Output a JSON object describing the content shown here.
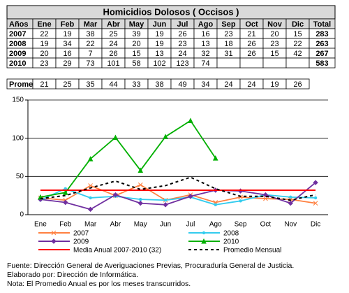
{
  "table": {
    "title": "Homicidios Dolosos ( Occisos )",
    "header": [
      "Años",
      "Ene",
      "Feb",
      "Mar",
      "Abr",
      "May",
      "Jun",
      "Jul",
      "Ago",
      "Sep",
      "Oct",
      "Nov",
      "Dic",
      "Total"
    ],
    "rows": [
      [
        "2007",
        22,
        19,
        38,
        25,
        39,
        19,
        26,
        16,
        23,
        21,
        20,
        15,
        283
      ],
      [
        "2008",
        19,
        34,
        22,
        24,
        20,
        19,
        23,
        13,
        18,
        26,
        23,
        22,
        263
      ],
      [
        "2009",
        20,
        16,
        7,
        26,
        15,
        13,
        24,
        32,
        31,
        26,
        15,
        42,
        267
      ],
      [
        "2010",
        23,
        29,
        73,
        101,
        58,
        102,
        123,
        74,
        null,
        null,
        null,
        null,
        583
      ]
    ],
    "average_row": [
      "Prome",
      21,
      25,
      35,
      44,
      33,
      38,
      49,
      34,
      24,
      24,
      19,
      26
    ]
  },
  "chart_data": {
    "type": "line",
    "categories": [
      "Ene",
      "Feb",
      "Mar",
      "Abr",
      "May",
      "Jun",
      "Jul",
      "Ago",
      "Sep",
      "Oct",
      "Nov",
      "Dic"
    ],
    "ylim": [
      0,
      150
    ],
    "yticks": [
      0,
      50,
      100,
      150
    ],
    "grid": true,
    "series": [
      {
        "name": "2007",
        "color": "#ff8040",
        "marker": "star",
        "values": [
          22,
          19,
          38,
          25,
          39,
          19,
          26,
          16,
          23,
          21,
          20,
          15
        ]
      },
      {
        "name": "2008",
        "color": "#33ccee",
        "marker": "circle",
        "values": [
          19,
          34,
          22,
          24,
          20,
          19,
          23,
          13,
          18,
          26,
          23,
          22
        ]
      },
      {
        "name": "2009",
        "color": "#7030a0",
        "marker": "diamond",
        "values": [
          20,
          16,
          7,
          26,
          15,
          13,
          24,
          32,
          31,
          26,
          15,
          42
        ]
      },
      {
        "name": "2010",
        "color": "#00b000",
        "marker": "triangle",
        "values": [
          23,
          29,
          73,
          101,
          58,
          102,
          123,
          74,
          null,
          null,
          null,
          null
        ]
      },
      {
        "name": "Media Anual 2007-2010 (32)",
        "color": "#ff0000",
        "values": [
          32,
          32,
          32,
          32,
          32,
          32,
          32,
          32,
          32,
          32,
          32,
          32
        ]
      },
      {
        "name": "Promedio Mensual",
        "color": "#000000",
        "dashed": true,
        "values": [
          21,
          25,
          35,
          44,
          33,
          38,
          49,
          34,
          24,
          24,
          19,
          26
        ]
      }
    ]
  },
  "notes": [
    "Fuente: Dirección General de Averiguaciones Previas, Procuraduría General de Justicia.",
    "Elaborado por: Dirección de Informática.",
    "Nota:  El Promedio Anual es por los meses transcurridos."
  ]
}
